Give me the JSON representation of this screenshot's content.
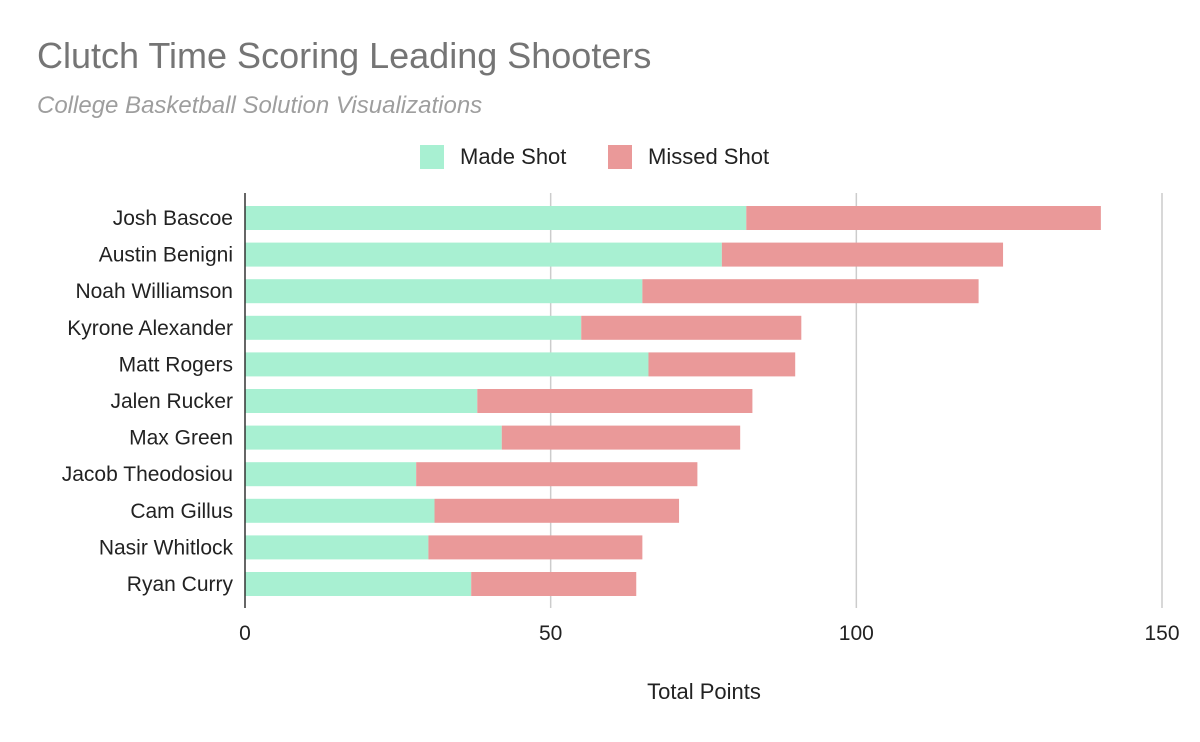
{
  "chart_data": {
    "type": "bar",
    "orientation": "horizontal",
    "stacked": true,
    "title": "Clutch Time Scoring Leading Shooters",
    "subtitle": "College Basketball Solution Visualizations",
    "xlabel": "Total Points",
    "ylabel": "",
    "xlim": [
      0,
      150
    ],
    "xticks": [
      "0",
      "50",
      "100",
      "150"
    ],
    "grid": true,
    "legend": "top",
    "categories": [
      "Josh Bascoe",
      "Austin Benigni",
      "Noah Williamson",
      "Kyrone Alexander",
      "Matt Rogers",
      "Jalen Rucker",
      "Max Green",
      "Jacob Theodosiou",
      "Cam Gillus",
      "Nasir Whitlock",
      "Ryan Curry"
    ],
    "series": [
      {
        "name": "Made Shot",
        "color": "#a8f0d2",
        "values": [
          82,
          78,
          65,
          55,
          66,
          38,
          42,
          28,
          31,
          30,
          37
        ]
      },
      {
        "name": "Missed Shot",
        "color": "#ea9999",
        "values": [
          58,
          46,
          55,
          36,
          24,
          45,
          39,
          46,
          40,
          35,
          27
        ]
      }
    ]
  }
}
